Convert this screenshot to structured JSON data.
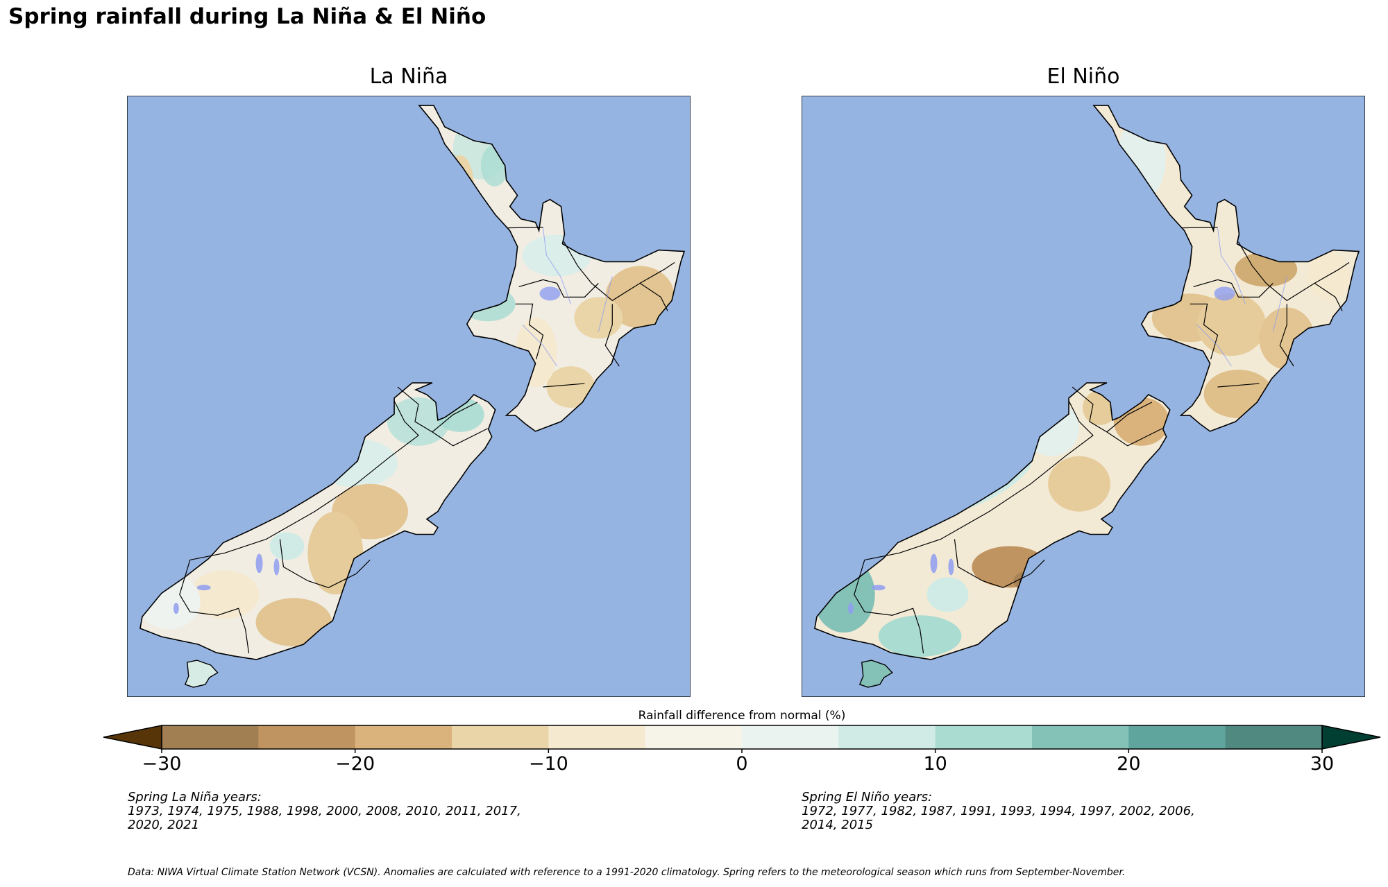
{
  "title": "Spring rainfall during La Niña & El Niño",
  "panels": [
    {
      "title": "La Niña",
      "years_heading": "Spring La Niña years:",
      "years_line1": "1973, 1974, 1975, 1988, 1998, 2000, 2008, 2010, 2011, 2017,",
      "years_line2": "2020, 2021"
    },
    {
      "title": "El Niño",
      "years_heading": "Spring El Niño years:",
      "years_line1": "1972, 1977, 1982, 1987, 1991, 1993, 1994, 1997, 2002, 2006,",
      "years_line2": "2014, 2015"
    }
  ],
  "colorbar": {
    "label": "Rainfall difference from normal (%)",
    "ticks": [
      "−30",
      "−20",
      "−10",
      "0",
      "10",
      "20",
      "30"
    ],
    "bins": [
      -30,
      -25,
      -20,
      -15,
      -10,
      -5,
      0,
      5,
      10,
      15,
      20,
      25,
      30
    ],
    "colors": [
      "#a27e53",
      "#c09461",
      "#d9b27c",
      "#ead5a8",
      "#f5e9d0",
      "#f6f3e8",
      "#ebf3f1",
      "#d0ebe5",
      "#aadcd2",
      "#84c1b7",
      "#5fa59e",
      "#4f8980"
    ],
    "extend_low_color": "#573509",
    "extend_high_color": "#013f33"
  },
  "footnote": "Data: NIWA Virtual Climate Station Network (VCSN). Anomalies are calculated with reference to a 1991-2020 climatology. Spring refers to the meteorological season which runs from September-November.",
  "colors": {
    "ocean": "#96b4e1",
    "land_base": "#f4efe2",
    "coast": "#000000",
    "rivers": "#8f9ef0"
  },
  "chart_data": [
    {
      "type": "heatmap",
      "title": "La Niña",
      "subject": "Spring rainfall difference from normal (%) over New Zealand",
      "colorbar_range": [
        -30,
        30
      ],
      "colorbar_label": "Rainfall difference from normal (%)",
      "regional_pattern": {
        "Northland east coast": "+5 to +15 (wetter)",
        "Northland west / Kaipara": "-5 to -15 (drier)",
        "Waikato / Bay of Plenty": "0 to +10",
        "Taranaki": "+5 to +15 (wetter)",
        "Gisborne / Hawke's Bay": "-10 to -20 (drier)",
        "Wairarapa": "-5 to -15 (drier)",
        "Nelson / Marlborough Sounds / Tasman": "+5 to +20 (wetter)",
        "West Coast": "0 to +10",
        "Canterbury foothills / Mackenzie": "-10 to -20 (drier)",
        "Otago": "-5 to -20 (drier)",
        "Southland / Fiordland": "-5 to +5",
        "Stewart Island": "+5 to +10"
      }
    },
    {
      "type": "heatmap",
      "title": "El Niño",
      "subject": "Spring rainfall difference from normal (%) over New Zealand",
      "colorbar_range": [
        -30,
        30
      ],
      "colorbar_label": "Rainfall difference from normal (%)",
      "regional_pattern": {
        "Northland": "0 to +10",
        "Waikato / Bay of Plenty": "-10 to -20 (drier)",
        "Taranaki / Manawatu": "-10 to -15 (drier)",
        "Gisborne / Hawke's Bay": "-5 to -15 (drier)",
        "Wairarapa / Wellington": "-10 to -15 (drier)",
        "Marlborough": "-10 to -20 (drier)",
        "West Coast": "0 to +10",
        "Canterbury": "-10 to -20 (drier)",
        "Central / Coastal Otago": "-15 to -25 (drier)",
        "Fiordland / Southland": "+10 to +20 (wetter)",
        "Stewart Island": "+10 to +20 (wetter)"
      }
    }
  ]
}
